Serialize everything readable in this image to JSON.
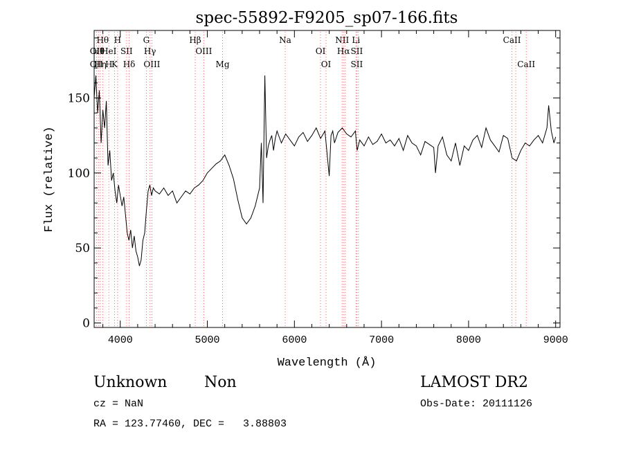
{
  "chart_data": {
    "type": "line",
    "title": "spec-55892-F9205_sp07-166.fits",
    "xlabel": "Wavelength (Å)",
    "ylabel": "Flux (relative)",
    "xlim": [
      3700,
      9050
    ],
    "ylim": [
      -3,
      195
    ],
    "x_ticks": [
      4000,
      5000,
      6000,
      7000,
      8000,
      9000
    ],
    "y_ticks": [
      0,
      50,
      100,
      150
    ],
    "grid": false,
    "series": [
      {
        "x": [
          3700,
          3720,
          3740,
          3760,
          3780,
          3800,
          3820,
          3840,
          3860,
          3880,
          3900,
          3920,
          3940,
          3960,
          3980,
          4000,
          4020,
          4040,
          4060,
          4080,
          4100,
          4120,
          4140,
          4160,
          4180,
          4200,
          4220,
          4240,
          4260,
          4280,
          4300,
          4320,
          4340,
          4360,
          4380,
          4400,
          4450,
          4500,
          4550,
          4600,
          4650,
          4700,
          4750,
          4800,
          4850,
          4900,
          4950,
          5000,
          5050,
          5100,
          5150,
          5200,
          5250,
          5300,
          5350,
          5400,
          5450,
          5500,
          5550,
          5600,
          5620,
          5640,
          5660,
          5680,
          5700,
          5720,
          5740,
          5760,
          5780,
          5800,
          5850,
          5900,
          5950,
          6000,
          6050,
          6100,
          6150,
          6200,
          6250,
          6300,
          6350,
          6400,
          6420,
          6440,
          6460,
          6500,
          6550,
          6600,
          6650,
          6700,
          6720,
          6750,
          6800,
          6850,
          6900,
          6950,
          7000,
          7050,
          7100,
          7150,
          7200,
          7250,
          7300,
          7350,
          7400,
          7450,
          7500,
          7550,
          7600,
          7620,
          7650,
          7700,
          7750,
          7800,
          7850,
          7900,
          7950,
          8000,
          8050,
          8100,
          8150,
          8200,
          8250,
          8300,
          8350,
          8400,
          8450,
          8500,
          8550,
          8600,
          8650,
          8700,
          8750,
          8800,
          8850,
          8900,
          8920,
          8950,
          8980,
          9000
        ],
        "y": [
          150,
          165,
          140,
          155,
          120,
          142,
          130,
          148,
          105,
          115,
          95,
          100,
          88,
          80,
          92,
          85,
          78,
          84,
          72,
          60,
          55,
          62,
          50,
          58,
          48,
          44,
          38,
          42,
          55,
          60,
          75,
          88,
          92,
          85,
          90,
          88,
          86,
          90,
          85,
          88,
          80,
          84,
          88,
          86,
          90,
          92,
          95,
          100,
          103,
          106,
          108,
          112,
          105,
          96,
          82,
          70,
          66,
          70,
          78,
          90,
          120,
          80,
          165,
          110,
          118,
          122,
          125,
          115,
          123,
          128,
          120,
          126,
          122,
          118,
          124,
          127,
          121,
          125,
          130,
          123,
          128,
          98,
          125,
          128,
          120,
          127,
          130,
          126,
          124,
          128,
          115,
          122,
          118,
          124,
          119,
          121,
          126,
          120,
          122,
          118,
          123,
          115,
          125,
          120,
          118,
          112,
          121,
          119,
          117,
          100,
          118,
          124,
          112,
          108,
          120,
          105,
          118,
          115,
          122,
          125,
          117,
          130,
          122,
          118,
          114,
          125,
          123,
          110,
          108,
          115,
          120,
          118,
          122,
          125,
          120,
          130,
          145,
          128,
          120,
          124
        ]
      }
    ],
    "lines": [
      {
        "wl": 3727,
        "labels": [
          "OII",
          "OII"
        ]
      },
      {
        "wl": 3750,
        "labels": [
          "Hθ"
        ]
      },
      {
        "wl": 3771,
        "labels": [
          "Hη"
        ]
      },
      {
        "wl": 3798,
        "labels": [
          "Hθ"
        ]
      },
      {
        "wl": 3869,
        "labels": [
          "HeI",
          "H"
        ]
      },
      {
        "wl": 3934,
        "labels": [
          "K"
        ]
      },
      {
        "wl": 3969,
        "labels": [
          "H"
        ]
      },
      {
        "wl": 4072,
        "labels": [
          "SII"
        ]
      },
      {
        "wl": 4102,
        "labels": [
          "Hδ"
        ]
      },
      {
        "wl": 4300,
        "labels": [
          "G"
        ]
      },
      {
        "wl": 4341,
        "labels": [
          "Hγ"
        ]
      },
      {
        "wl": 4363,
        "labels": [
          "OIII"
        ]
      },
      {
        "wl": 4861,
        "labels": [
          "Hβ"
        ]
      },
      {
        "wl": 4959,
        "labels": [
          "OIII"
        ]
      },
      {
        "wl": 5175,
        "labels": [
          "Mg"
        ]
      },
      {
        "wl": 5894,
        "labels": [
          "Na"
        ]
      },
      {
        "wl": 6300,
        "labels": [
          "OI"
        ]
      },
      {
        "wl": 6363,
        "labels": [
          "OI"
        ]
      },
      {
        "wl": 6548,
        "labels": [
          "NII"
        ]
      },
      {
        "wl": 6563,
        "labels": [
          "Hα"
        ]
      },
      {
        "wl": 6583,
        "labels": []
      },
      {
        "wl": 6707,
        "labels": [
          "Li"
        ]
      },
      {
        "wl": 6716,
        "labels": [
          "SII",
          "SII"
        ]
      },
      {
        "wl": 6731,
        "labels": []
      },
      {
        "wl": 8498,
        "labels": [
          "CaII"
        ]
      },
      {
        "wl": 8542,
        "labels": []
      },
      {
        "wl": 8662,
        "labels": [
          "CaII"
        ]
      }
    ]
  },
  "info": {
    "class": "Unknown",
    "subclass": "Non",
    "cz": "cz = NaN",
    "radec": "RA = 123.77460, DEC =   3.88803",
    "survey": "LAMOST DR2",
    "obsdate": "Obs-Date: 20111126"
  }
}
